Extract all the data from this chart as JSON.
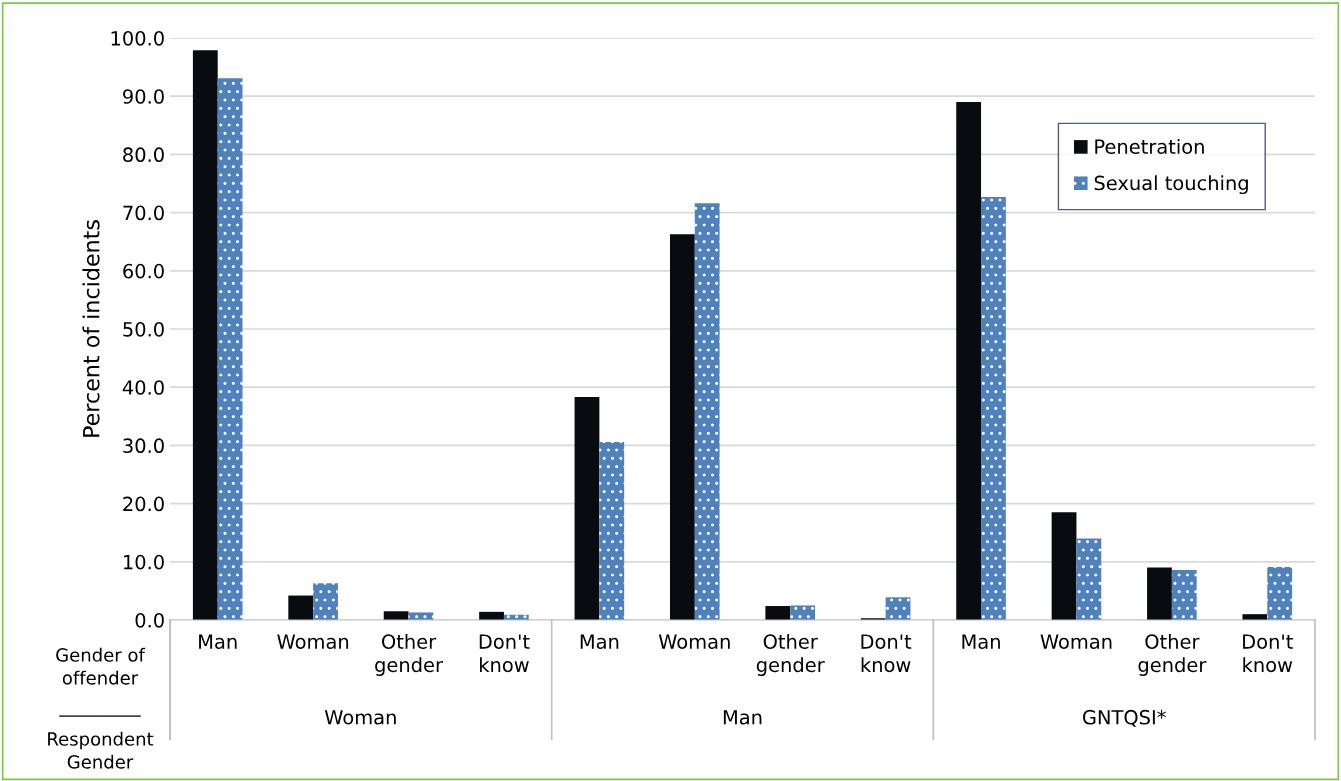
{
  "chart_data": {
    "type": "bar",
    "ylabel": "Percent of incidents",
    "categories": [
      "Man",
      "Woman",
      "Other\ngender",
      "Don't\nknow",
      "Man",
      "Woman",
      "Other\ngender",
      "Don't\nknow",
      "Man",
      "Woman",
      "Other\ngender",
      "Don't\nknow"
    ],
    "series": [
      {
        "name": "Penetration",
        "color": "#080c10",
        "values": [
          97.9,
          4.2,
          1.5,
          1.4,
          38.3,
          66.3,
          2.4,
          0.3,
          89.0,
          18.5,
          9.0,
          1.0
        ]
      },
      {
        "name": "Sexual touching",
        "color": "#4f81bd",
        "values": [
          93.1,
          6.3,
          1.3,
          0.9,
          30.6,
          71.6,
          2.5,
          3.9,
          72.7,
          14.0,
          8.6,
          9.1
        ]
      }
    ],
    "annotations": [
      "Gender of\noffender",
      "_________",
      "Respondent\nGender",
      "Woman",
      "Man",
      "GNTQSI*"
    ],
    "ylim": [
      0,
      100
    ],
    "yticks": [
      {
        "value": 0,
        "label": "0.0"
      },
      {
        "value": 10,
        "label": "10.0"
      },
      {
        "value": 20,
        "label": "20.0"
      },
      {
        "value": 30,
        "label": "30.0"
      },
      {
        "value": 40,
        "label": "40.0"
      },
      {
        "value": 50,
        "label": "50.0"
      },
      {
        "value": 60,
        "label": "60.0"
      },
      {
        "value": 70,
        "label": "70.0"
      },
      {
        "value": 80,
        "label": "80.0"
      },
      {
        "value": 90,
        "label": "90.0"
      },
      {
        "value": 100,
        "label": "100.0"
      }
    ],
    "grid": "y",
    "legend": "top right"
  }
}
